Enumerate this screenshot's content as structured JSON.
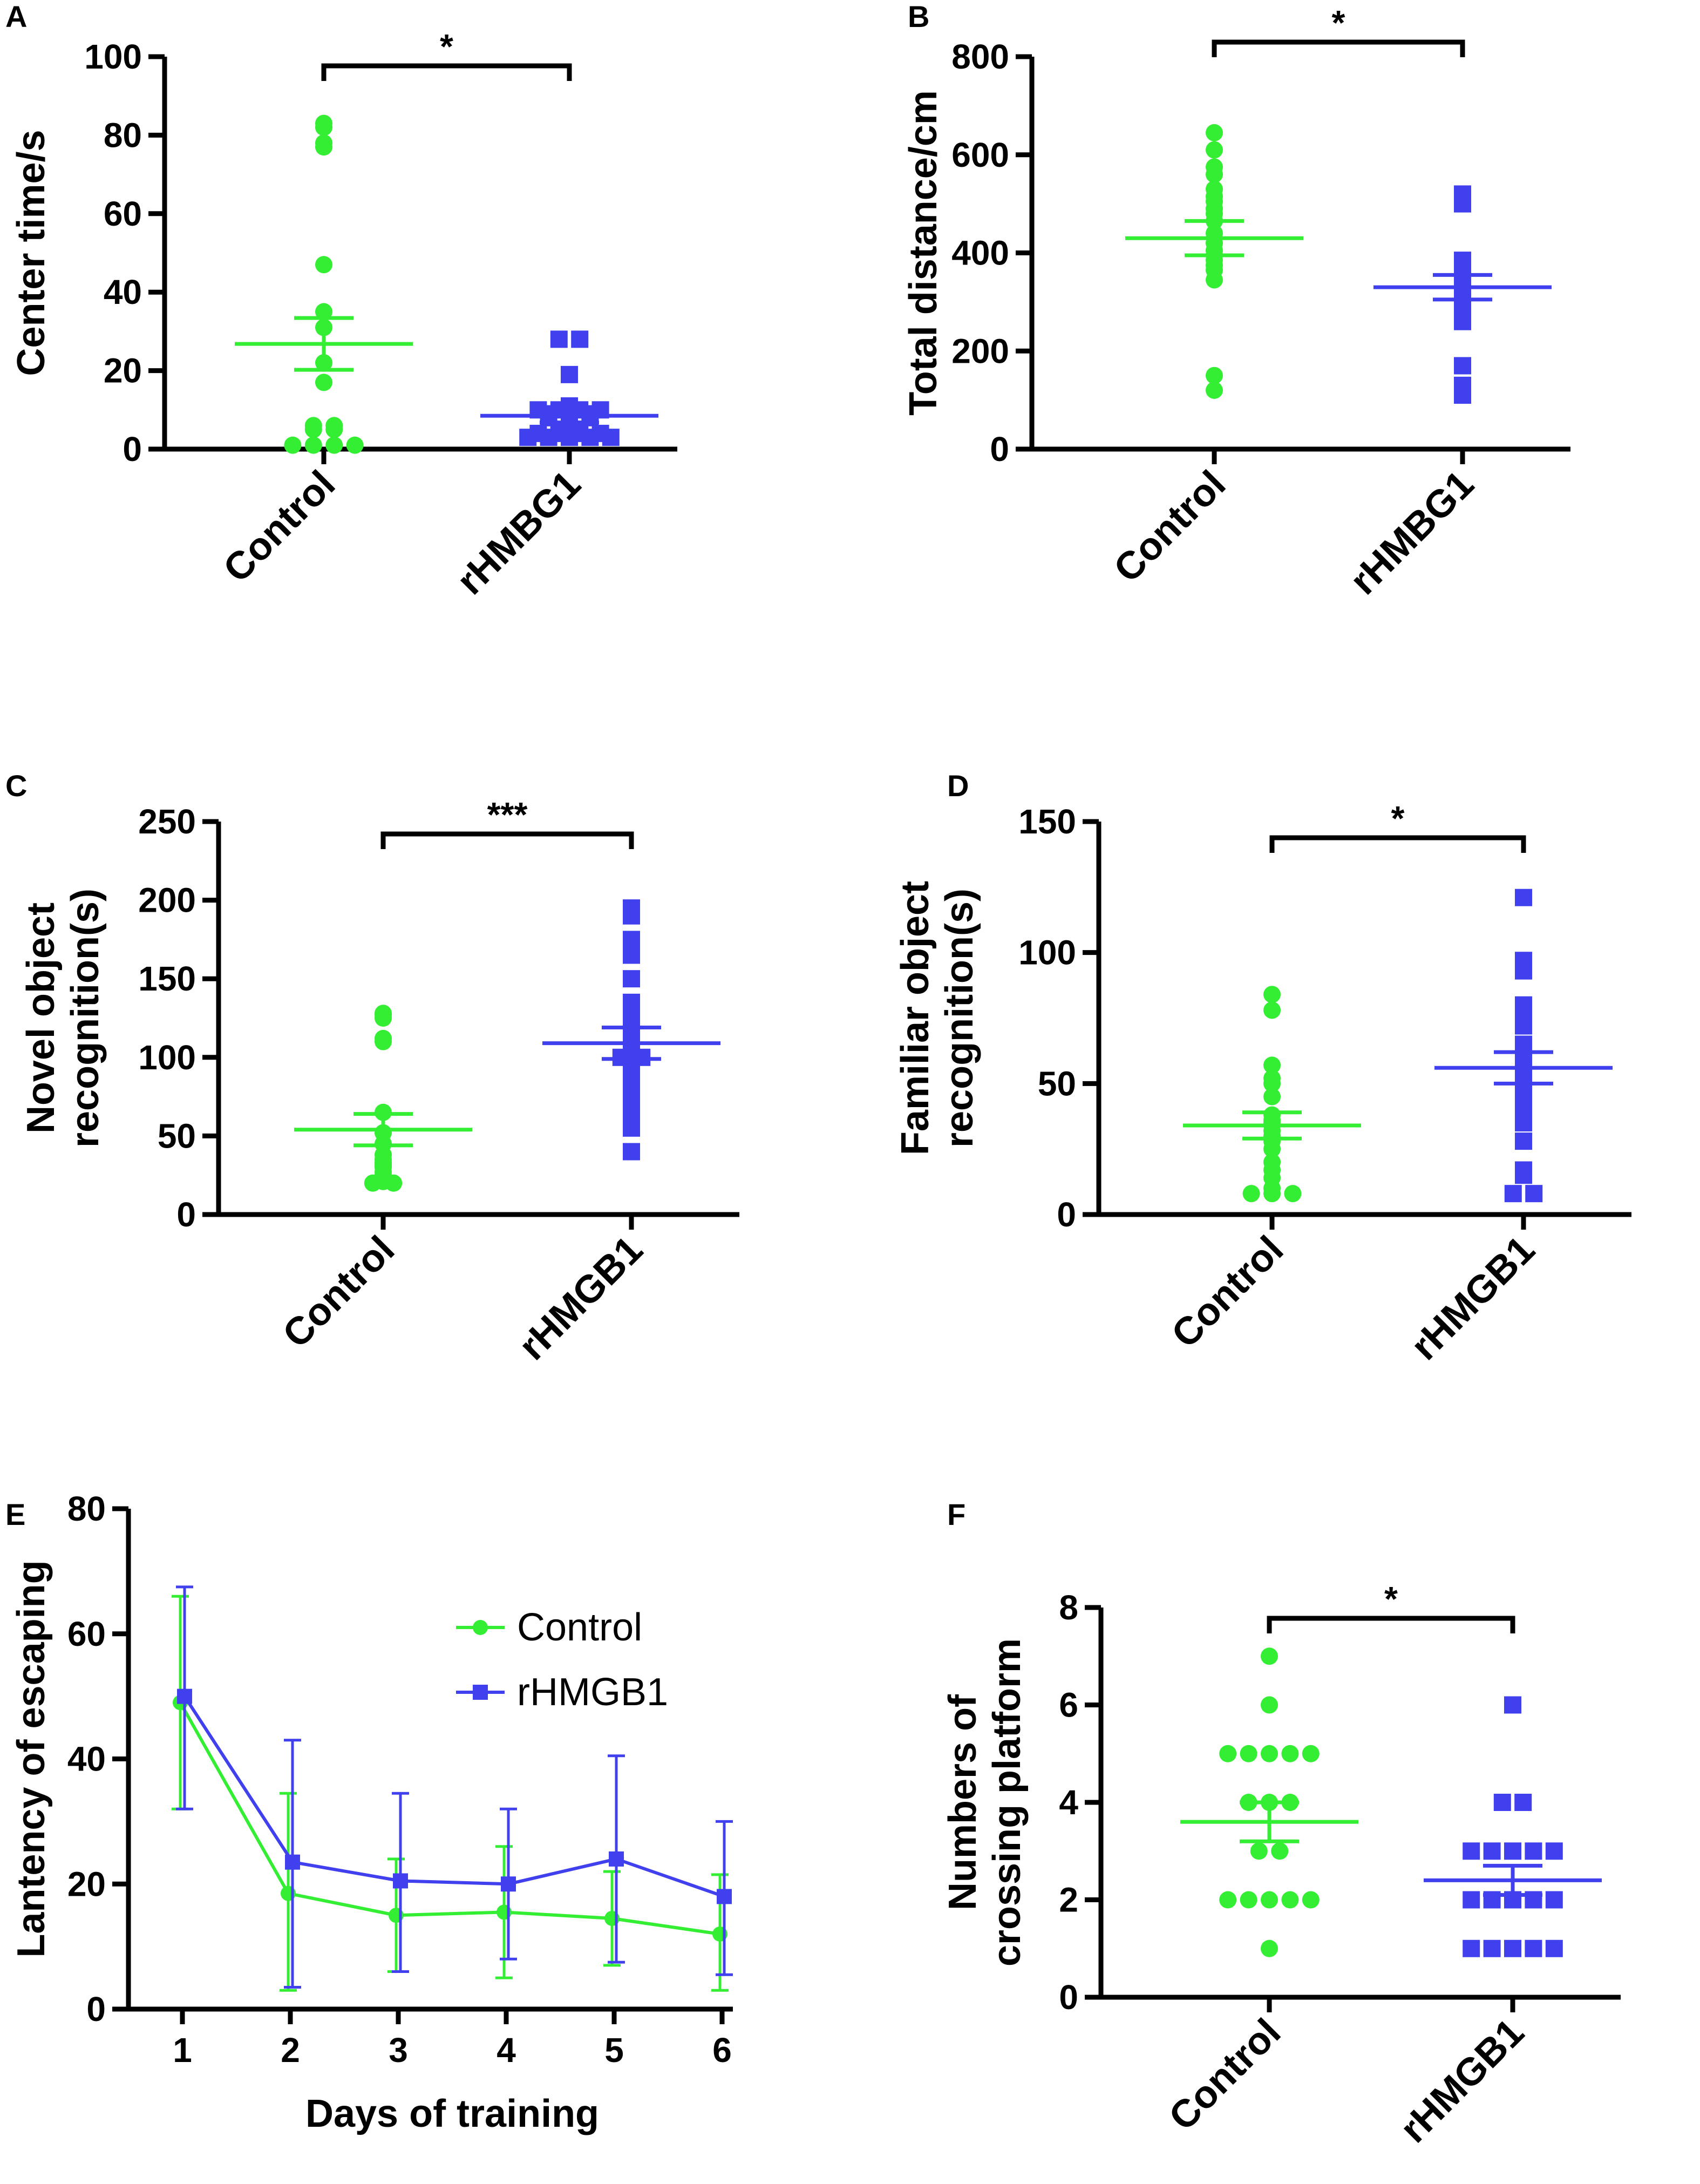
{
  "figure": {
    "description_visible": false
  },
  "colors": {
    "control": "#33ee33",
    "rhmgb1": "#4040ee",
    "axis": "#000000"
  },
  "chart_data": [
    {
      "panel": "A",
      "type": "scatter",
      "ylabel": "Center time/s",
      "ylim": [
        0,
        100
      ],
      "yticks": [
        "0",
        "20",
        "40",
        "60",
        "80",
        "100"
      ],
      "categories": [
        "Control",
        "rHMBG1"
      ],
      "significance": "*",
      "groups": [
        {
          "name": "Control",
          "marker": "circle",
          "values": [
            83,
            78,
            82,
            77,
            47,
            35,
            31,
            22,
            17,
            6,
            6,
            5,
            5,
            1,
            1,
            1,
            1
          ],
          "mean": 26.8,
          "sem_low": 20.2,
          "sem_high": 33.4
        },
        {
          "name": "rHMBG1",
          "marker": "square",
          "values": [
            28,
            28,
            19,
            11,
            10,
            10,
            10,
            10,
            9,
            9,
            9,
            8,
            8,
            8,
            7,
            5,
            5,
            4,
            4,
            4,
            4,
            3,
            3,
            3,
            3,
            3
          ],
          "mean": 8.5,
          "sem_low": 6.8,
          "sem_high": 10.2
        }
      ]
    },
    {
      "panel": "B",
      "type": "scatter",
      "ylabel": "Total distance/cm",
      "ylim": [
        0,
        800
      ],
      "yticks": [
        "0",
        "200",
        "400",
        "600",
        "800"
      ],
      "categories": [
        "Control",
        "rHMBG1"
      ],
      "significance": "*",
      "groups": [
        {
          "name": "Control",
          "marker": "circle",
          "values": [
            645,
            610,
            575,
            560,
            530,
            515,
            505,
            490,
            480,
            465,
            440,
            420,
            405,
            395,
            385,
            375,
            365,
            345,
            150,
            120
          ],
          "mean": 430,
          "sem_low": 395,
          "sem_high": 465
        },
        {
          "name": "rHMBG1",
          "marker": "square",
          "values": [
            520,
            510,
            500,
            385,
            380,
            375,
            370,
            350,
            345,
            340,
            330,
            320,
            315,
            305,
            290,
            280,
            260,
            170,
            130,
            110
          ],
          "mean": 330,
          "sem_low": 305,
          "sem_high": 355
        }
      ]
    },
    {
      "panel": "C",
      "type": "scatter",
      "ylabel": "Novel object recognition(s)",
      "ylim": [
        0,
        250
      ],
      "yticks": [
        "0",
        "50",
        "100",
        "150",
        "200",
        "250"
      ],
      "categories": [
        "Control",
        "rHMGB1"
      ],
      "significance": "***",
      "groups": [
        {
          "name": "Control",
          "marker": "circle",
          "values": [
            128,
            127,
            125,
            112,
            110,
            65,
            52,
            45,
            38,
            35,
            33,
            32,
            31,
            30,
            27,
            25,
            24,
            22,
            21,
            20,
            20
          ],
          "mean": 54,
          "sem_low": 44,
          "sem_high": 64
        },
        {
          "name": "rHMGB1",
          "marker": "square",
          "values": [
            195,
            190,
            175,
            165,
            150,
            135,
            125,
            118,
            115,
            110,
            105,
            100,
            100,
            95,
            90,
            85,
            75,
            65,
            55,
            40
          ],
          "mean": 109,
          "sem_low": 99,
          "sem_high": 119
        }
      ]
    },
    {
      "panel": "D",
      "type": "scatter",
      "ylabel": "Familiar object recognition(s)",
      "ylim": [
        0,
        150
      ],
      "yticks": [
        "0",
        "50",
        "100",
        "150"
      ],
      "categories": [
        "Control",
        "rHMGB1"
      ],
      "significance": "*",
      "groups": [
        {
          "name": "Control",
          "marker": "circle",
          "values": [
            84,
            78,
            57,
            52,
            50,
            45,
            38,
            36,
            35,
            34,
            32,
            30,
            28,
            25,
            20,
            17,
            14,
            10,
            8,
            8,
            8
          ],
          "mean": 34,
          "sem_low": 29,
          "sem_high": 39
        },
        {
          "name": "rHMGB1",
          "marker": "square",
          "values": [
            121,
            97,
            93,
            80,
            75,
            72,
            65,
            62,
            60,
            58,
            55,
            50,
            45,
            40,
            35,
            28,
            17,
            15,
            8,
            8
          ],
          "mean": 56,
          "sem_low": 50,
          "sem_high": 62
        }
      ]
    },
    {
      "panel": "E",
      "type": "line",
      "xlabel": "Days of training",
      "ylabel": "Lantency of escaping",
      "ylim": [
        0,
        80
      ],
      "yticks": [
        "0",
        "20",
        "40",
        "60",
        "80"
      ],
      "x": [
        1,
        2,
        3,
        4,
        5,
        6
      ],
      "xticks": [
        "1",
        "2",
        "3",
        "4",
        "5",
        "6"
      ],
      "legend_position": "top-right",
      "series": [
        {
          "name": "Control",
          "marker": "circle",
          "values": [
            49,
            18.5,
            15,
            15.5,
            14.5,
            12
          ],
          "err_low": [
            32,
            3,
            6,
            5,
            7,
            3
          ],
          "err_high": [
            66,
            34.5,
            24,
            26,
            22,
            21.5
          ]
        },
        {
          "name": "rHMGB1",
          "marker": "square",
          "values": [
            50,
            23.5,
            20.5,
            20,
            24,
            18
          ],
          "err_low": [
            32,
            3.5,
            6,
            8,
            7.5,
            5.5
          ],
          "err_high": [
            67.5,
            43,
            34.5,
            32,
            40.5,
            30
          ]
        }
      ]
    },
    {
      "panel": "F",
      "type": "scatter",
      "ylabel": "Numbers of crossing platform",
      "ylim": [
        0,
        8
      ],
      "yticks": [
        "0",
        "2",
        "4",
        "6",
        "8"
      ],
      "categories": [
        "Control",
        "rHMGB1"
      ],
      "significance": "*",
      "groups": [
        {
          "name": "Control",
          "marker": "circle",
          "values": [
            7,
            6,
            5,
            5,
            5,
            5,
            5,
            4,
            4,
            4,
            3,
            3,
            2,
            2,
            2,
            2,
            2,
            1
          ],
          "mean": 3.6,
          "sem_low": 3.2,
          "sem_high": 4.0
        },
        {
          "name": "rHMGB1",
          "marker": "square",
          "values": [
            6,
            4,
            4,
            3,
            3,
            3,
            3,
            3,
            2,
            2,
            2,
            2,
            2,
            1,
            1,
            1,
            1,
            1
          ],
          "mean": 2.4,
          "sem_low": 2.1,
          "sem_high": 2.7
        }
      ]
    }
  ]
}
